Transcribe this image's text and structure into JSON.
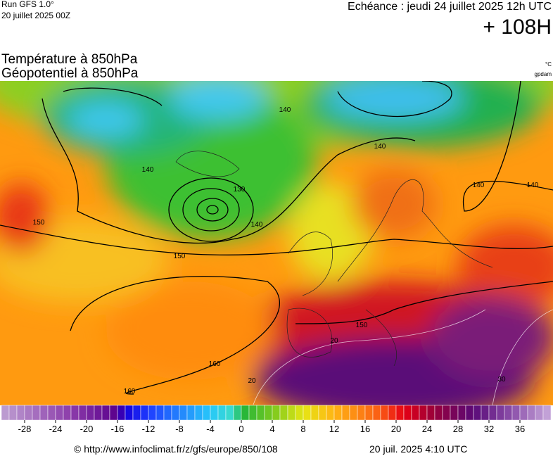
{
  "header": {
    "run": "Run GFS 1.0°",
    "run_date": "20 juillet 2025 00Z",
    "valid": "Echéance : jeudi 24 juillet 2025 12h UTC",
    "lead": "+ 108H"
  },
  "title": {
    "line1": "Température à 850hPa",
    "line2": "Géopotentiel à 850hPa",
    "unit1": "°C",
    "unit2": "gpdam"
  },
  "map": {
    "contour_labels": [
      140,
      140,
      130,
      140,
      150,
      150,
      140,
      140,
      140,
      150,
      160,
      160,
      20,
      20,
      30
    ]
  },
  "colorbar": {
    "ticks": [
      -28,
      -24,
      -20,
      -16,
      -12,
      -8,
      -4,
      0,
      4,
      8,
      12,
      16,
      20,
      24,
      28,
      32,
      36
    ]
  },
  "footer": {
    "url": "© http://www.infoclimat.fr/z/gfs/europe/850/108",
    "time": "20 juil. 2025  4:10 UTC"
  }
}
